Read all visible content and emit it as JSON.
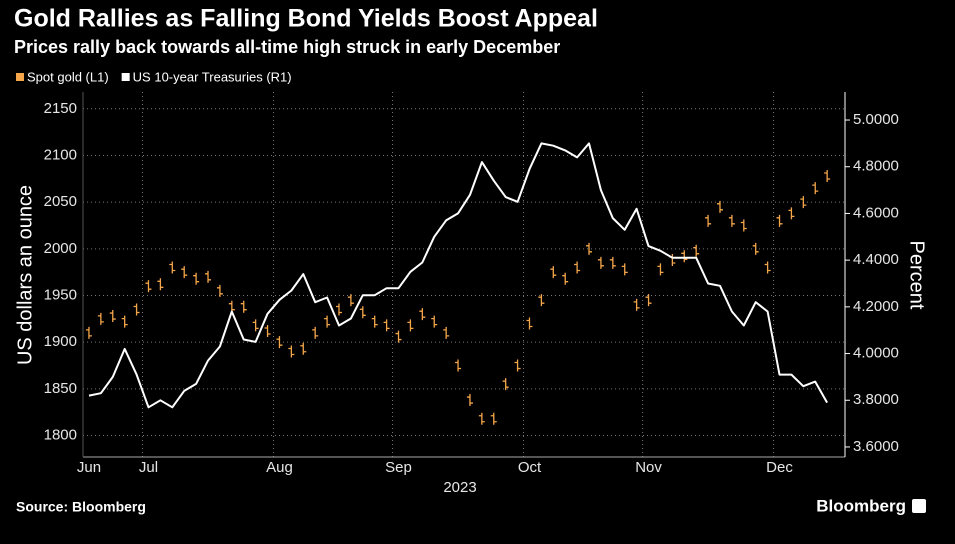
{
  "chart_data": {
    "type": "line",
    "title": "Gold Rallies as Falling Bond Yields Boost Appeal",
    "subtitle": "Prices rally back towards all-time high struck in early December",
    "y_label": "US dollars an ounce",
    "y2_label": "Percent",
    "x_label": "2023",
    "source": "Source: Bloomberg",
    "brand": "Bloomberg",
    "legend": "top-left",
    "grid": true,
    "categories": [
      "Jun",
      null,
      null,
      null,
      null,
      "Jul",
      null,
      null,
      null,
      null,
      null,
      null,
      null,
      null,
      null,
      null,
      "Aug",
      null,
      null,
      null,
      null,
      null,
      null,
      null,
      null,
      null,
      "Sep",
      null,
      null,
      null,
      null,
      null,
      null,
      null,
      null,
      null,
      null,
      "Oct",
      null,
      null,
      null,
      null,
      null,
      null,
      null,
      null,
      null,
      "Nov",
      null,
      null,
      null,
      null,
      null,
      null,
      null,
      null,
      null,
      null,
      "Dec",
      null,
      null,
      null,
      null,
      null
    ],
    "ylim": [
      1777,
      2168
    ],
    "yticks": [
      1800,
      1850,
      1900,
      1950,
      2000,
      2050,
      2100,
      2150
    ],
    "y2lim": [
      3.557,
      5.12
    ],
    "y2ticks": [
      {
        "value": 3.6,
        "label": "3.6000"
      },
      {
        "value": 3.8,
        "label": "3.8000"
      },
      {
        "value": 4.0,
        "label": "4.0000"
      },
      {
        "value": 4.2,
        "label": "4.2000"
      },
      {
        "value": 4.4,
        "label": "4.4000"
      },
      {
        "value": 4.6,
        "label": "4.6000"
      },
      {
        "value": 4.8,
        "label": "4.8000"
      },
      {
        "value": 5.0,
        "label": "5.0000"
      }
    ],
    "series": [
      {
        "name": "Spot gold (L1)",
        "color": "#f5a64a",
        "type": "tick",
        "axis": "y",
        "values": [
          1910,
          1925,
          1928,
          1922,
          1935,
          1960,
          1962,
          1980,
          1975,
          1968,
          1970,
          1955,
          1938,
          1938,
          1918,
          1912,
          1900,
          1890,
          1893,
          1910,
          1922,
          1935,
          1945,
          1932,
          1922,
          1918,
          1906,
          1918,
          1930,
          1922,
          1910,
          1875,
          1838,
          1818,
          1818,
          1855,
          1875,
          1920,
          1945,
          1975,
          1968,
          1980,
          2000,
          1985,
          1985,
          1978,
          1940,
          1945,
          1978,
          1988,
          1992,
          1998,
          2030,
          2045,
          2030,
          2025,
          2000,
          1980,
          2030,
          2038,
          2050,
          2065,
          2078,
          null
        ]
      },
      {
        "name": "US 10-year Treasuries (R1)",
        "color": "#ffffff",
        "type": "line",
        "axis": "y2",
        "values": [
          3.82,
          3.83,
          3.9,
          4.02,
          3.91,
          3.77,
          3.8,
          3.77,
          3.84,
          3.87,
          3.97,
          4.03,
          4.18,
          4.06,
          4.05,
          4.17,
          4.23,
          4.27,
          4.34,
          4.22,
          4.24,
          4.12,
          4.15,
          4.25,
          4.25,
          4.28,
          4.28,
          4.35,
          4.39,
          4.5,
          4.57,
          4.6,
          4.68,
          4.82,
          4.74,
          4.67,
          4.65,
          4.79,
          4.9,
          4.89,
          4.87,
          4.84,
          4.9,
          4.7,
          4.58,
          4.53,
          4.62,
          4.46,
          4.44,
          4.41,
          4.41,
          4.41,
          4.3,
          4.29,
          4.18,
          4.12,
          4.22,
          4.18,
          3.91,
          3.91,
          3.86,
          3.88,
          3.79,
          null
        ]
      }
    ]
  }
}
